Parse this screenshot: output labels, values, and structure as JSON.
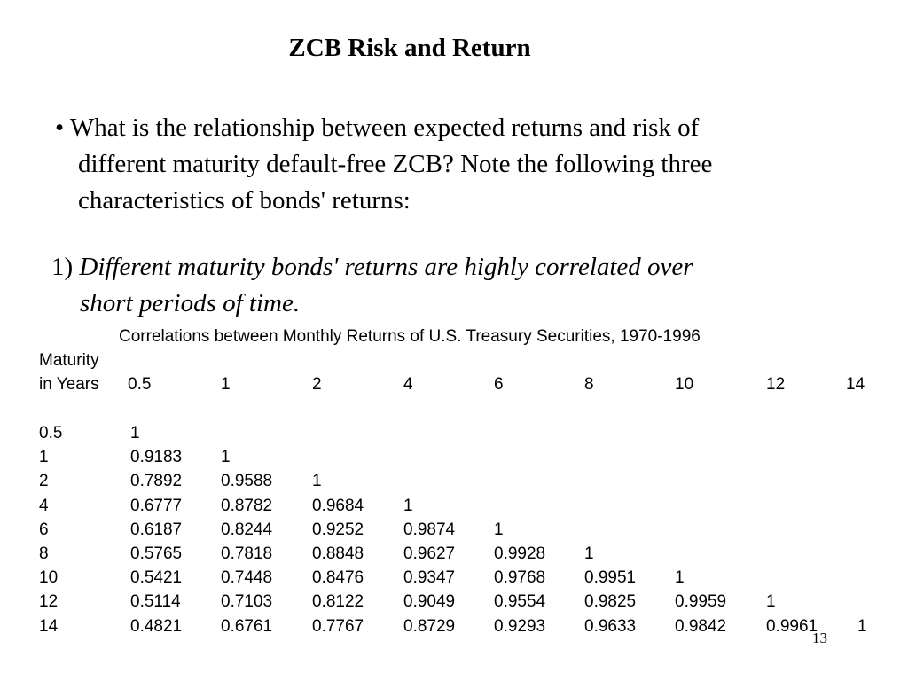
{
  "title": "ZCB Risk and Return",
  "bullet": {
    "line1": "• What is the relationship between expected returns and risk of",
    "line2": "different maturity default-free ZCB?  Note the following three",
    "line3": "characteristics of bonds' returns:"
  },
  "point1": {
    "number": "1)",
    "text_line1": "Different maturity bonds' returns are highly correlated over",
    "text_line2": "short periods of time."
  },
  "table": {
    "caption": "Correlations between Monthly Returns of U.S. Treasury Securities, 1970-1996",
    "row_header_line1": "Maturity",
    "row_header_line2": "in Years",
    "columns": [
      "0.5",
      "1",
      "2",
      "4",
      "6",
      "8",
      "10",
      "12",
      "14"
    ],
    "rows": [
      {
        "label": "0.5",
        "values": [
          "1"
        ]
      },
      {
        "label": "1",
        "values": [
          "0.9183",
          "1"
        ]
      },
      {
        "label": "2",
        "values": [
          "0.7892",
          "0.9588",
          "1"
        ]
      },
      {
        "label": "4",
        "values": [
          "0.6777",
          "0.8782",
          "0.9684",
          "1"
        ]
      },
      {
        "label": "6",
        "values": [
          "0.6187",
          "0.8244",
          "0.9252",
          "0.9874",
          "1"
        ]
      },
      {
        "label": "8",
        "values": [
          "0.5765",
          "0.7818",
          "0.8848",
          "0.9627",
          "0.9928",
          "1"
        ]
      },
      {
        "label": "10",
        "values": [
          "0.5421",
          "0.7448",
          "0.8476",
          "0.9347",
          "0.9768",
          "0.9951",
          "1"
        ]
      },
      {
        "label": "12",
        "values": [
          "0.5114",
          "0.7103",
          "0.8122",
          "0.9049",
          "0.9554",
          "0.9825",
          "0.9959",
          "1"
        ]
      },
      {
        "label": "14",
        "values": [
          "0.4821",
          "0.6761",
          "0.7767",
          "0.8729",
          "0.9293",
          "0.9633",
          "0.9842",
          "0.9961",
          "1"
        ]
      }
    ]
  },
  "page_number": "13"
}
